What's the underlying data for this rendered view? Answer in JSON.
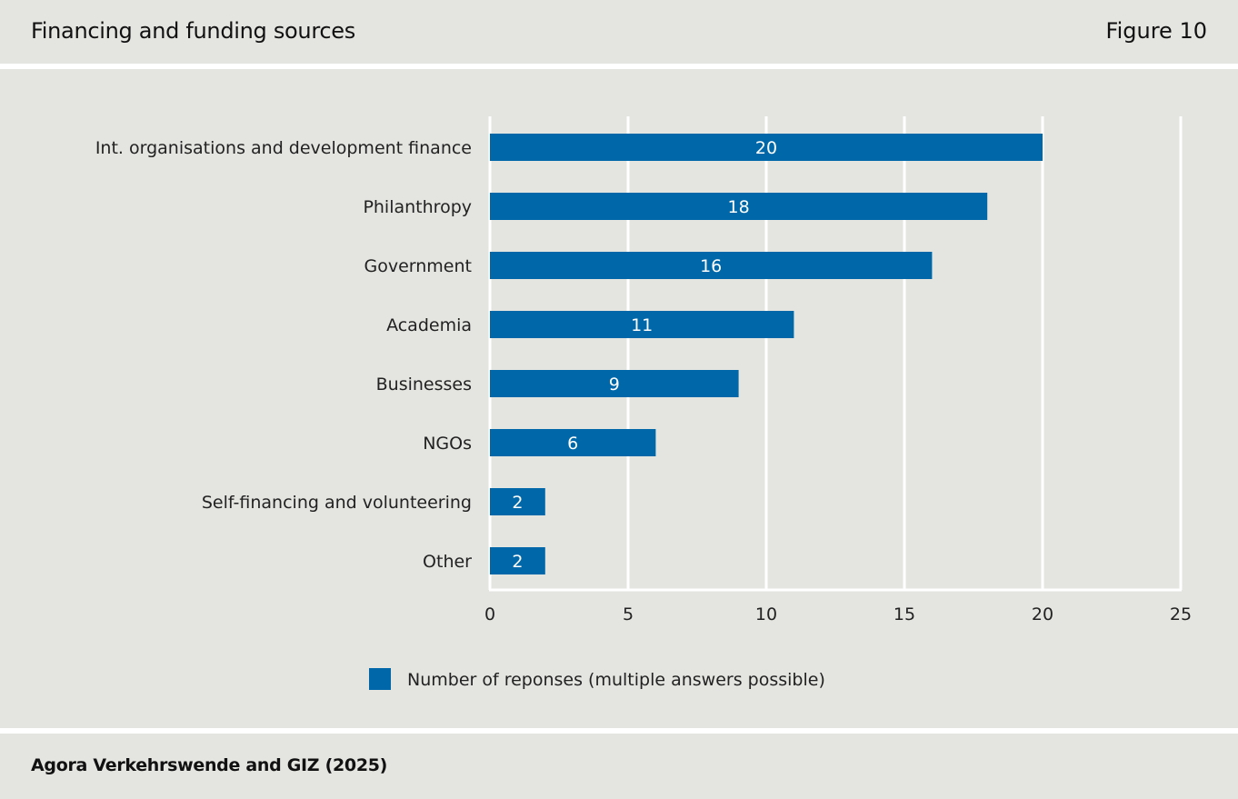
{
  "header": {
    "title": "Financing and funding sources",
    "figure_label": "Figure 10"
  },
  "footer": {
    "source": "Agora Verkehrswende and GIZ (2025)"
  },
  "colors": {
    "bar": "#0068a8",
    "background": "#e4e4e0",
    "grid": "#ffffff"
  },
  "chart_data": {
    "type": "bar",
    "orientation": "horizontal",
    "title": "Financing and funding sources",
    "categories": [
      "Int. organisations and development finance",
      "Philanthropy",
      "Government",
      "Academia",
      "Businesses",
      "NGOs",
      "Self-financing and volunteering",
      "Other"
    ],
    "series": [
      {
        "name": "Number of reponses (multiple answers possible)",
        "values": [
          20,
          18,
          16,
          11,
          9,
          6,
          2,
          2
        ]
      }
    ],
    "xlabel": "",
    "ylabel": "",
    "xlim": [
      0,
      25
    ],
    "xticks": [
      0,
      5,
      10,
      15,
      20,
      25
    ],
    "grid": true,
    "legend": "bottom-center",
    "data_labels": true
  }
}
